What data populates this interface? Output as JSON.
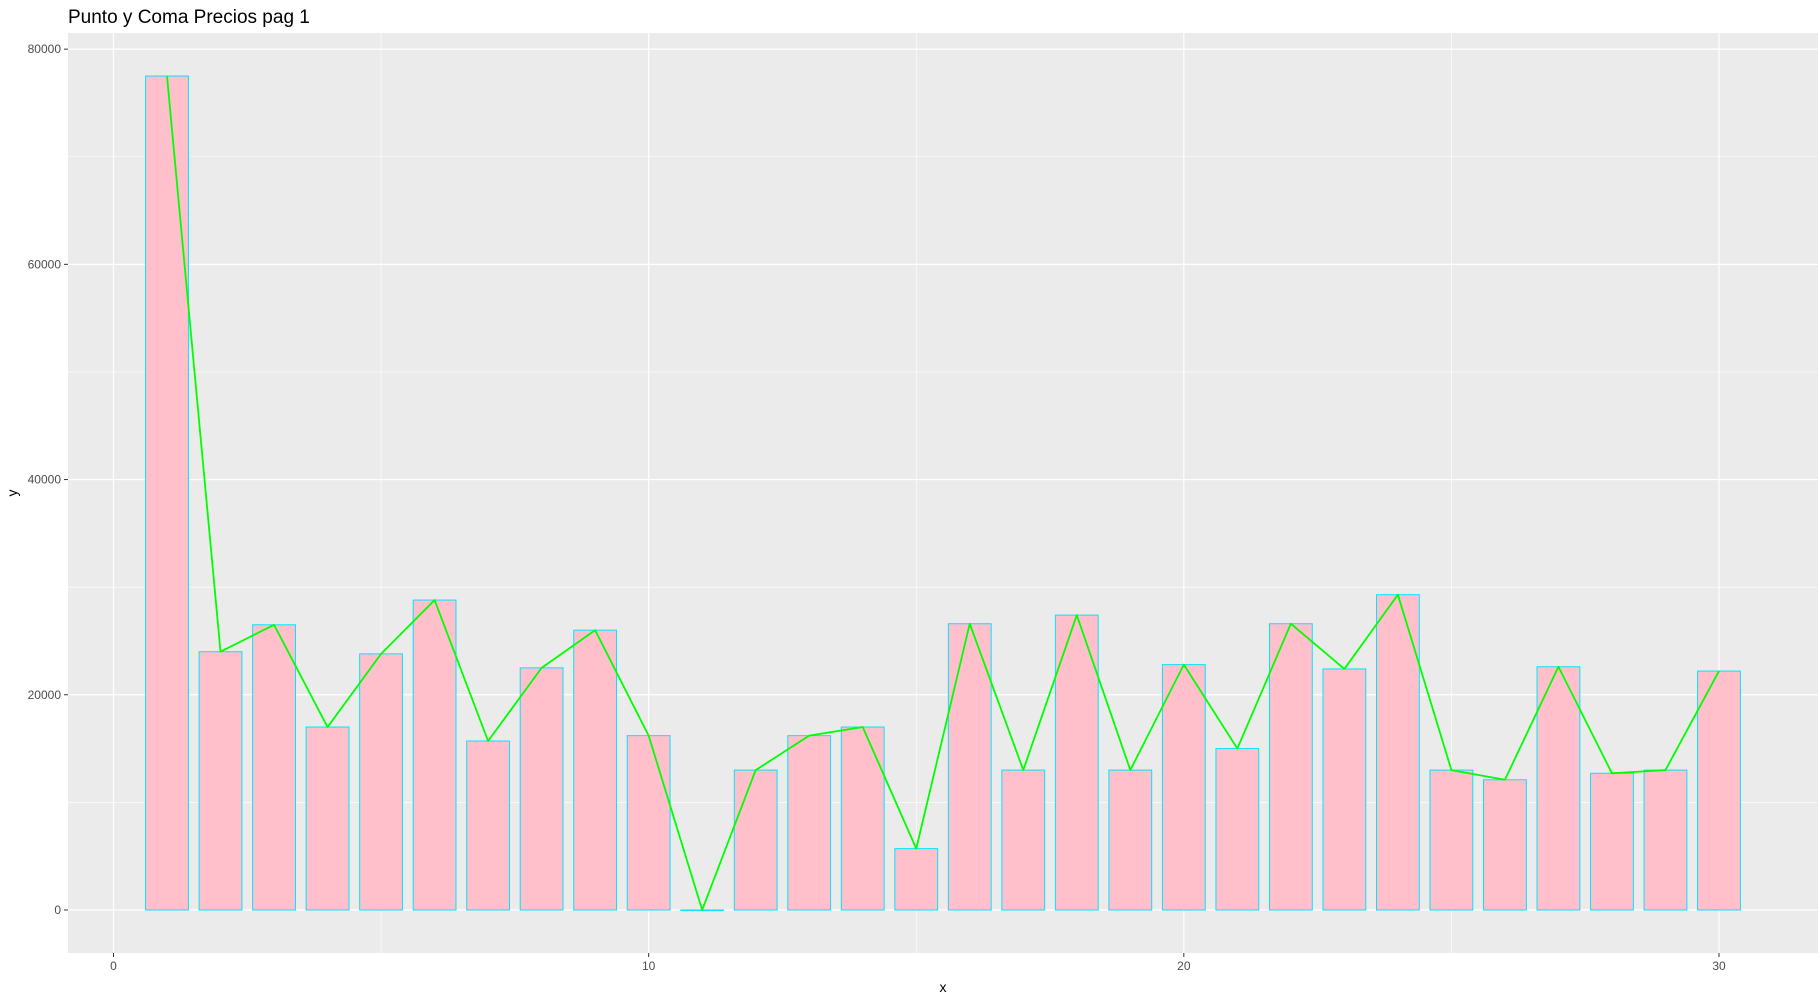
{
  "chart_data": {
    "type": "bar",
    "title": "Punto y Coma Precios pag 1",
    "xlabel": "x",
    "ylabel": "y",
    "xlim": [
      -0.85,
      31.85
    ],
    "ylim": [
      -4000,
      81500
    ],
    "x_ticks": [
      0,
      10,
      20,
      30
    ],
    "y_ticks": [
      0,
      20000,
      40000,
      60000,
      80000
    ],
    "grid": true,
    "colors": {
      "panel": "#ebebeb",
      "grid_major": "#ffffff",
      "bar_fill": "#ffc0cb",
      "bar_outline": "#00e5ff",
      "line": "#00ff00",
      "tick_text": "#4d4d4d"
    },
    "x": [
      1,
      2,
      3,
      4,
      5,
      6,
      7,
      8,
      9,
      10,
      11,
      12,
      13,
      14,
      15,
      16,
      17,
      18,
      19,
      20,
      21,
      22,
      23,
      24,
      25,
      26,
      27,
      28,
      29,
      30
    ],
    "values": [
      77500,
      24000,
      26500,
      17000,
      23800,
      28800,
      15700,
      22500,
      26000,
      16200,
      0,
      13000,
      16200,
      17000,
      5700,
      26600,
      13000,
      27400,
      13000,
      22800,
      15000,
      26600,
      22400,
      29300,
      13000,
      12100,
      22600,
      12700,
      13000,
      22200
    ]
  }
}
